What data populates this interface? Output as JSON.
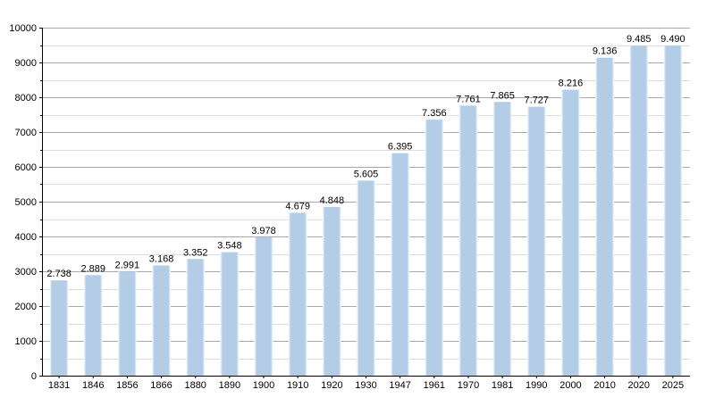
{
  "chart_data": {
    "type": "bar",
    "categories": [
      "1831",
      "1846",
      "1856",
      "1866",
      "1880",
      "1890",
      "1900",
      "1910",
      "1920",
      "1930",
      "1947",
      "1961",
      "1970",
      "1981",
      "1990",
      "2000",
      "2010",
      "2020",
      "2025"
    ],
    "values": [
      2738,
      2889,
      2991,
      3168,
      3352,
      3548,
      3978,
      4679,
      4848,
      5605,
      6395,
      7356,
      7761,
      7865,
      7727,
      8216,
      9136,
      9485,
      9490
    ],
    "data_labels": [
      "2.738",
      "2.889",
      "2.991",
      "3.168",
      "3.352",
      "3.548",
      "3.978",
      "4.679",
      "4.848",
      "5.605",
      "6.395",
      "7.356",
      "7.761",
      "7.865",
      "7.727",
      "8.216",
      "9.136",
      "9.485",
      "9.490"
    ],
    "ylim": [
      0,
      10000
    ],
    "yticks": [
      0,
      1000,
      2000,
      3000,
      4000,
      5000,
      6000,
      7000,
      8000,
      9000,
      10000
    ],
    "yticks_labels": [
      "0",
      "1000",
      "2000",
      "3000",
      "4000",
      "5000",
      "6000",
      "7000",
      "8000",
      "9000",
      "10000"
    ],
    "minor_grid_step": 500,
    "grid": true,
    "legend": "none",
    "title": "",
    "xlabel": "",
    "ylabel": "",
    "bar_color": "#b3cde6",
    "bar_edge_color": "#ffffff",
    "major_grid_color": "#a9a9a9",
    "minor_grid_color": "#dcdcdc"
  }
}
